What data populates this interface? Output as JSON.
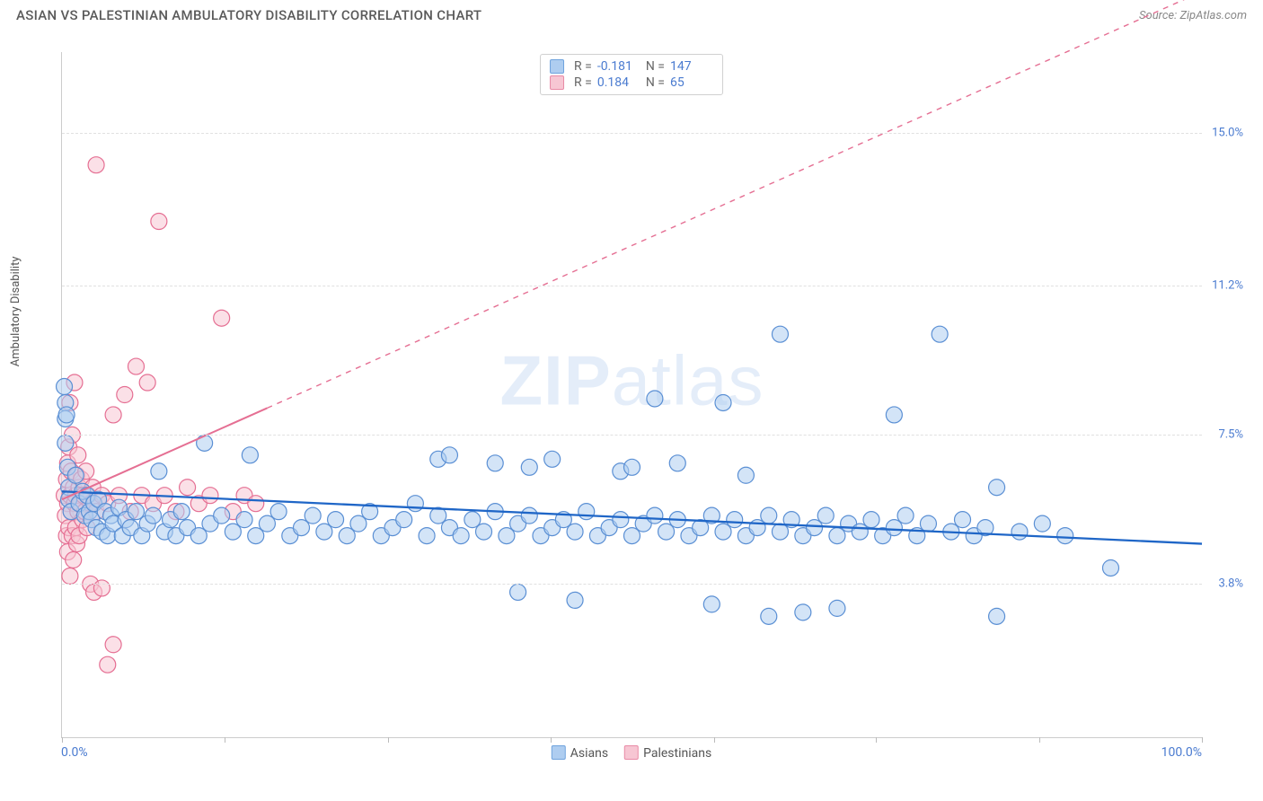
{
  "header": {
    "title": "ASIAN VS PALESTINIAN AMBULATORY DISABILITY CORRELATION CHART",
    "source_prefix": "Source: ",
    "source": "ZipAtlas.com"
  },
  "chart": {
    "type": "scatter",
    "ylabel": "Ambulatory Disability",
    "watermark_a": "ZIP",
    "watermark_b": "atlas",
    "xlim": [
      0,
      100
    ],
    "ylim": [
      0,
      17
    ],
    "xaxis": {
      "min_label": "0.0%",
      "max_label": "100.0%",
      "tick_positions": [
        0,
        14.3,
        28.6,
        42.9,
        57.2,
        71.4,
        85.7,
        100
      ]
    },
    "yaxis_ticks": [
      {
        "value": 3.8,
        "label": "3.8%"
      },
      {
        "value": 7.5,
        "label": "7.5%"
      },
      {
        "value": 11.2,
        "label": "11.2%"
      },
      {
        "value": 15.0,
        "label": "15.0%"
      }
    ],
    "legend_bottom": [
      {
        "label": "Asians",
        "fill": "#aecdf0",
        "stroke": "#6fa3dd"
      },
      {
        "label": "Palestinians",
        "fill": "#f7c6d3",
        "stroke": "#e88aa6"
      }
    ],
    "stats": [
      {
        "swatch_fill": "#aecdf0",
        "swatch_stroke": "#6fa3dd",
        "r": "-0.181",
        "n": "147"
      },
      {
        "swatch_fill": "#f7c6d3",
        "swatch_stroke": "#e88aa6",
        "r": "0.184",
        "n": "65"
      }
    ],
    "series": {
      "asians": {
        "fill": "#aecdf0",
        "stroke": "#5a8fd4",
        "fill_opacity": 0.55,
        "marker_r": 9,
        "trend": {
          "color": "#1f66c7",
          "width": 2.3,
          "y_at_x0": 6.1,
          "y_at_x100": 4.8,
          "solid_to_x": 100
        },
        "points": [
          [
            0.2,
            8.7
          ],
          [
            0.3,
            8.3
          ],
          [
            0.3,
            7.9
          ],
          [
            0.3,
            7.3
          ],
          [
            0.4,
            8.0
          ],
          [
            0.5,
            6.7
          ],
          [
            0.6,
            6.2
          ],
          [
            0.6,
            5.9
          ],
          [
            0.8,
            5.6
          ],
          [
            1.2,
            6.5
          ],
          [
            1.5,
            5.8
          ],
          [
            1.8,
            6.1
          ],
          [
            2.0,
            5.5
          ],
          [
            2.2,
            6.0
          ],
          [
            2.4,
            5.6
          ],
          [
            2.6,
            5.4
          ],
          [
            2.8,
            5.8
          ],
          [
            3.0,
            5.2
          ],
          [
            3.2,
            5.9
          ],
          [
            3.5,
            5.1
          ],
          [
            3.8,
            5.6
          ],
          [
            4.0,
            5.0
          ],
          [
            4.3,
            5.5
          ],
          [
            4.5,
            5.3
          ],
          [
            5.0,
            5.7
          ],
          [
            5.3,
            5.0
          ],
          [
            5.6,
            5.4
          ],
          [
            6.0,
            5.2
          ],
          [
            6.5,
            5.6
          ],
          [
            7.0,
            5.0
          ],
          [
            7.5,
            5.3
          ],
          [
            8.0,
            5.5
          ],
          [
            8.5,
            6.6
          ],
          [
            9.0,
            5.1
          ],
          [
            9.5,
            5.4
          ],
          [
            10,
            5.0
          ],
          [
            10.5,
            5.6
          ],
          [
            11,
            5.2
          ],
          [
            12,
            5.0
          ],
          [
            12.5,
            7.3
          ],
          [
            13,
            5.3
          ],
          [
            14,
            5.5
          ],
          [
            15,
            5.1
          ],
          [
            16,
            5.4
          ],
          [
            16.5,
            7.0
          ],
          [
            17,
            5.0
          ],
          [
            18,
            5.3
          ],
          [
            19,
            5.6
          ],
          [
            20,
            5.0
          ],
          [
            21,
            5.2
          ],
          [
            22,
            5.5
          ],
          [
            23,
            5.1
          ],
          [
            24,
            5.4
          ],
          [
            25,
            5.0
          ],
          [
            26,
            5.3
          ],
          [
            27,
            5.6
          ],
          [
            28,
            5.0
          ],
          [
            29,
            5.2
          ],
          [
            30,
            5.4
          ],
          [
            31,
            5.8
          ],
          [
            32,
            5.0
          ],
          [
            33,
            5.5
          ],
          [
            33,
            6.9
          ],
          [
            34,
            5.2
          ],
          [
            34,
            7.0
          ],
          [
            35,
            5.0
          ],
          [
            36,
            5.4
          ],
          [
            37,
            5.1
          ],
          [
            38,
            5.6
          ],
          [
            38,
            6.8
          ],
          [
            39,
            5.0
          ],
          [
            40,
            5.3
          ],
          [
            40,
            3.6
          ],
          [
            41,
            5.5
          ],
          [
            41,
            6.7
          ],
          [
            42,
            5.0
          ],
          [
            43,
            5.2
          ],
          [
            43,
            6.9
          ],
          [
            44,
            5.4
          ],
          [
            45,
            5.1
          ],
          [
            45,
            3.4
          ],
          [
            46,
            5.6
          ],
          [
            47,
            5.0
          ],
          [
            48,
            5.2
          ],
          [
            49,
            6.6
          ],
          [
            49,
            5.4
          ],
          [
            50,
            5.0
          ],
          [
            50,
            6.7
          ],
          [
            51,
            5.3
          ],
          [
            52,
            5.5
          ],
          [
            52,
            8.4
          ],
          [
            53,
            5.1
          ],
          [
            54,
            5.4
          ],
          [
            54,
            6.8
          ],
          [
            55,
            5.0
          ],
          [
            56,
            5.2
          ],
          [
            57,
            5.5
          ],
          [
            57,
            3.3
          ],
          [
            58,
            8.3
          ],
          [
            58,
            5.1
          ],
          [
            59,
            5.4
          ],
          [
            60,
            5.0
          ],
          [
            60,
            6.5
          ],
          [
            61,
            5.2
          ],
          [
            62,
            3.0
          ],
          [
            62,
            5.5
          ],
          [
            63,
            5.1
          ],
          [
            63,
            10.0
          ],
          [
            64,
            5.4
          ],
          [
            65,
            5.0
          ],
          [
            65,
            3.1
          ],
          [
            66,
            5.2
          ],
          [
            67,
            5.5
          ],
          [
            68,
            5.0
          ],
          [
            68,
            3.2
          ],
          [
            69,
            5.3
          ],
          [
            70,
            5.1
          ],
          [
            71,
            5.4
          ],
          [
            72,
            5.0
          ],
          [
            73,
            8.0
          ],
          [
            73,
            5.2
          ],
          [
            74,
            5.5
          ],
          [
            75,
            5.0
          ],
          [
            76,
            5.3
          ],
          [
            77,
            10.0
          ],
          [
            78,
            5.1
          ],
          [
            79,
            5.4
          ],
          [
            80,
            5.0
          ],
          [
            81,
            5.2
          ],
          [
            82,
            3.0
          ],
          [
            82,
            6.2
          ],
          [
            84,
            5.1
          ],
          [
            86,
            5.3
          ],
          [
            88,
            5.0
          ],
          [
            92,
            4.2
          ]
        ]
      },
      "palestinians": {
        "fill": "#f7c6d3",
        "stroke": "#e56f93",
        "fill_opacity": 0.55,
        "marker_r": 9,
        "trend": {
          "color": "#e56f93",
          "width": 2.0,
          "y_at_x0": 5.9,
          "y_at_x100": 18.5,
          "solid_to_x": 18
        },
        "points": [
          [
            0.2,
            6.0
          ],
          [
            0.3,
            5.5
          ],
          [
            0.4,
            6.4
          ],
          [
            0.4,
            5.0
          ],
          [
            0.5,
            5.8
          ],
          [
            0.5,
            6.8
          ],
          [
            0.5,
            4.6
          ],
          [
            0.6,
            7.2
          ],
          [
            0.6,
            5.2
          ],
          [
            0.7,
            6.0
          ],
          [
            0.7,
            8.3
          ],
          [
            0.7,
            4.0
          ],
          [
            0.8,
            5.6
          ],
          [
            0.8,
            6.6
          ],
          [
            0.9,
            5.0
          ],
          [
            0.9,
            7.5
          ],
          [
            1.0,
            6.2
          ],
          [
            1.0,
            4.4
          ],
          [
            1.1,
            5.8
          ],
          [
            1.1,
            8.8
          ],
          [
            1.2,
            6.0
          ],
          [
            1.2,
            5.2
          ],
          [
            1.3,
            6.5
          ],
          [
            1.3,
            4.8
          ],
          [
            1.4,
            5.6
          ],
          [
            1.4,
            7.0
          ],
          [
            1.5,
            6.2
          ],
          [
            1.5,
            5.0
          ],
          [
            1.6,
            5.8
          ],
          [
            1.7,
            6.4
          ],
          [
            1.8,
            5.4
          ],
          [
            1.9,
            6.0
          ],
          [
            2.0,
            5.6
          ],
          [
            2.1,
            6.6
          ],
          [
            2.2,
            5.2
          ],
          [
            2.3,
            6.0
          ],
          [
            2.5,
            5.8
          ],
          [
            2.5,
            3.8
          ],
          [
            2.7,
            6.2
          ],
          [
            2.8,
            3.6
          ],
          [
            3.0,
            5.6
          ],
          [
            3.5,
            6.0
          ],
          [
            3.5,
            3.7
          ],
          [
            4.0,
            5.8
          ],
          [
            4.0,
            1.8
          ],
          [
            4.5,
            2.3
          ],
          [
            4.5,
            8.0
          ],
          [
            5.0,
            6.0
          ],
          [
            5.5,
            8.5
          ],
          [
            6.0,
            5.6
          ],
          [
            6.5,
            9.2
          ],
          [
            7.0,
            6.0
          ],
          [
            7.5,
            8.8
          ],
          [
            8.0,
            5.8
          ],
          [
            8.5,
            12.8
          ],
          [
            9.0,
            6.0
          ],
          [
            10.0,
            5.6
          ],
          [
            11.0,
            6.2
          ],
          [
            12.0,
            5.8
          ],
          [
            13.0,
            6.0
          ],
          [
            14.0,
            10.4
          ],
          [
            15.0,
            5.6
          ],
          [
            16.0,
            6.0
          ],
          [
            17.0,
            5.8
          ],
          [
            3.0,
            14.2
          ]
        ]
      }
    }
  }
}
